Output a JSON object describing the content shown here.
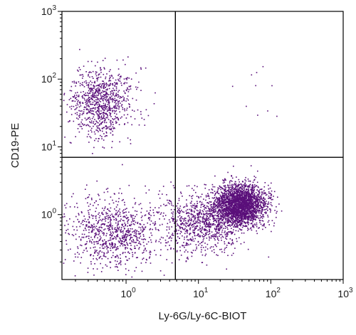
{
  "chart_data": {
    "type": "scatter",
    "title": "",
    "xlabel": "Ly-6G/Ly-6C-BIOT",
    "ylabel": "CD19-PE",
    "x_scale": "log",
    "y_scale": "log",
    "xlim": [
      0.13,
      1000
    ],
    "ylim": [
      0.11,
      1000
    ],
    "x_ticks": [
      {
        "base": "10",
        "exp": "0",
        "value": 1
      },
      {
        "base": "10",
        "exp": "1",
        "value": 10
      },
      {
        "base": "10",
        "exp": "2",
        "value": 100
      },
      {
        "base": "10",
        "exp": "3",
        "value": 1000
      }
    ],
    "y_ticks": [
      {
        "base": "10",
        "exp": "0",
        "value": 1
      },
      {
        "base": "10",
        "exp": "1",
        "value": 10
      },
      {
        "base": "10",
        "exp": "2",
        "value": 100
      },
      {
        "base": "10",
        "exp": "3",
        "value": 1000
      }
    ],
    "gates": {
      "x": 4.8,
      "y": 7.0
    },
    "grid": false,
    "legend": "none",
    "point_color": "#5a0f7a",
    "populations": [
      {
        "center_x": 0.45,
        "center_y": 45,
        "spread_x_decades": 0.22,
        "spread_y_decades": 0.25,
        "count": 900
      },
      {
        "center_x": 38,
        "center_y": 1.4,
        "spread_x_decades": 0.17,
        "spread_y_decades": 0.15,
        "count": 2400
      },
      {
        "center_x": 12,
        "center_y": 0.75,
        "spread_x_decades": 0.28,
        "spread_y_decades": 0.22,
        "count": 900
      },
      {
        "center_x": 0.7,
        "center_y": 0.55,
        "spread_x_decades": 0.32,
        "spread_y_decades": 0.25,
        "count": 900
      },
      {
        "center_x": 55,
        "center_y": 80,
        "spread_x_decades": 0.22,
        "spread_y_decades": 0.3,
        "count": 10
      }
    ]
  }
}
